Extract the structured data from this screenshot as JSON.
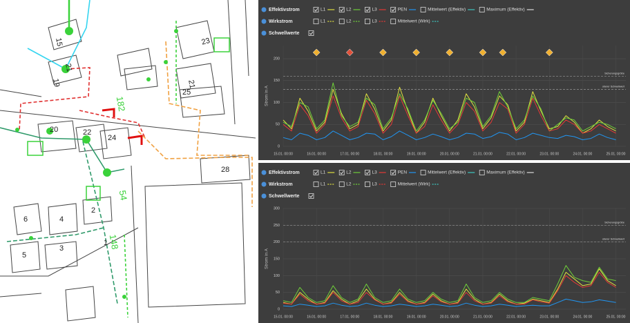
{
  "map": {
    "labels": [
      "15",
      "21",
      "19",
      "23",
      "21",
      "25",
      "182",
      "20",
      "22",
      "24",
      "28",
      "2",
      "54",
      "6",
      "4",
      "3",
      "5",
      "1",
      "148"
    ]
  },
  "chart_data": [
    {
      "type": "line",
      "legend_groups": [
        {
          "title": "Effektivstrom",
          "extra_items": [
            {
              "name": "Mittelwert (Effektiv)",
              "color": "#3ec7c0",
              "checked": false
            },
            {
              "name": "Maximum (Effektiv)",
              "color": "#dddddd",
              "checked": false
            }
          ]
        },
        {
          "title": "Wirkstrom",
          "items": [
            {
              "name": "L1",
              "color": "#e0e040",
              "checked": false
            },
            {
              "name": "L2",
              "color": "#6fcf3a",
              "checked": false
            },
            {
              "name": "L3",
              "color": "#e53935",
              "checked": false
            },
            {
              "name": "Mittelwert (Wirk)",
              "color": "#3ec7c0",
              "checked": false
            }
          ]
        },
        {
          "title": "Schwellwerte",
          "checked": true
        }
      ],
      "y_label": "Strom in A",
      "x": [
        15,
        15.25,
        15.5,
        15.75,
        16,
        16.25,
        16.5,
        16.75,
        17,
        17.25,
        17.5,
        17.75,
        18,
        18.25,
        18.5,
        18.75,
        19,
        19.25,
        19.5,
        19.75,
        20,
        20.25,
        20.5,
        20.75,
        21,
        21.25,
        21.5,
        21.75,
        22,
        22.25,
        22.5,
        22.75,
        23,
        23.25,
        23.5,
        23.75,
        24,
        24.25,
        24.5,
        24.75,
        25
      ],
      "xlim": [
        15,
        25.3
      ],
      "xticks": [
        {
          "value": 15,
          "label": "15.01. 00:00"
        },
        {
          "value": 16,
          "label": "16.01. 00:00"
        },
        {
          "value": 17,
          "label": "17.01. 00:00"
        },
        {
          "value": 18,
          "label": "18.01. 00:00"
        },
        {
          "value": 19,
          "label": "19.01. 00:00"
        },
        {
          "value": 20,
          "label": "20.01. 00:00"
        },
        {
          "value": 21,
          "label": "21.01. 00:00"
        },
        {
          "value": 22,
          "label": "22.01. 00:00"
        },
        {
          "value": 23,
          "label": "23.01. 00:00"
        },
        {
          "value": 24,
          "label": "24.01. 00:00"
        },
        {
          "value": 25,
          "label": "25.01. 00:00"
        }
      ],
      "ylim": [
        0,
        230
      ],
      "yticks": [
        0,
        50,
        100,
        150,
        200
      ],
      "thresholds": [
        {
          "label": "Sicherungsgröße",
          "value": 160
        },
        {
          "label": "oberer Schwellwert",
          "value": 130
        }
      ],
      "markers": [
        {
          "x": 16,
          "color": "#f0b030"
        },
        {
          "x": 17,
          "color": "#e0503a"
        },
        {
          "x": 18,
          "color": "#f0b030"
        },
        {
          "x": 19,
          "color": "#f0b030"
        },
        {
          "x": 20,
          "color": "#f0b030"
        },
        {
          "x": 21,
          "color": "#f0b030"
        },
        {
          "x": 21.6,
          "color": "#f0b030"
        },
        {
          "x": 23,
          "color": "#f0b030"
        }
      ],
      "series": [
        {
          "name": "L1",
          "color": "#e0e040",
          "checked": true,
          "values": [
            60,
            40,
            110,
            80,
            35,
            55,
            130,
            75,
            40,
            50,
            120,
            85,
            35,
            60,
            135,
            80,
            30,
            55,
            110,
            70,
            35,
            60,
            120,
            90,
            40,
            65,
            115,
            95,
            35,
            55,
            125,
            80,
            40,
            45,
            70,
            55,
            30,
            40,
            60,
            45,
            35
          ]
        },
        {
          "name": "L2",
          "color": "#6fcf3a",
          "checked": true,
          "values": [
            55,
            45,
            100,
            90,
            40,
            60,
            145,
            70,
            45,
            55,
            110,
            95,
            40,
            65,
            120,
            85,
            35,
            60,
            105,
            75,
            40,
            55,
            110,
            100,
            45,
            70,
            125,
            90,
            40,
            60,
            115,
            85,
            35,
            50,
            65,
            60,
            35,
            45,
            55,
            50,
            40
          ]
        },
        {
          "name": "L3",
          "color": "#e53935",
          "checked": true,
          "values": [
            50,
            35,
            95,
            70,
            30,
            50,
            115,
            65,
            35,
            45,
            105,
            75,
            30,
            50,
            115,
            70,
            30,
            45,
            95,
            60,
            30,
            50,
            100,
            80,
            35,
            55,
            100,
            85,
            30,
            50,
            110,
            70,
            35,
            40,
            60,
            50,
            30,
            35,
            50,
            40,
            30
          ]
        },
        {
          "name": "PEN",
          "color": "#2196f3",
          "checked": true,
          "values": [
            20,
            15,
            30,
            25,
            15,
            20,
            35,
            25,
            15,
            20,
            30,
            28,
            15,
            22,
            35,
            25,
            15,
            20,
            28,
            22,
            15,
            20,
            30,
            28,
            18,
            22,
            32,
            28,
            15,
            20,
            30,
            25,
            20,
            18,
            25,
            22,
            15,
            18,
            28,
            20,
            15
          ]
        }
      ]
    },
    {
      "type": "line",
      "legend_groups": [
        {
          "title": "Effektivstrom",
          "extra_items": [
            {
              "name": "Mittelwert (Effektiv)",
              "color": "#3ec7c0",
              "checked": false
            },
            {
              "name": "Maximum (Effektiv)",
              "color": "#dddddd",
              "checked": false
            }
          ]
        },
        {
          "title": "Wirkstrom",
          "items": [
            {
              "name": "L1",
              "color": "#e0e040",
              "checked": false
            },
            {
              "name": "L2",
              "color": "#6fcf3a",
              "checked": false
            },
            {
              "name": "L3",
              "color": "#e53935",
              "checked": false
            },
            {
              "name": "Mittelwert (Wirk)",
              "color": "#3ec7c0",
              "checked": false
            }
          ]
        },
        {
          "title": "Schwellwerte",
          "checked": true
        }
      ],
      "y_label": "Strom in A",
      "x": [
        15,
        15.25,
        15.5,
        15.75,
        16,
        16.25,
        16.5,
        16.75,
        17,
        17.25,
        17.5,
        17.75,
        18,
        18.25,
        18.5,
        18.75,
        19,
        19.25,
        19.5,
        19.75,
        20,
        20.25,
        20.5,
        20.75,
        21,
        21.25,
        21.5,
        21.75,
        22,
        22.25,
        22.5,
        22.75,
        23,
        23.25,
        23.5,
        23.75,
        24,
        24.25,
        24.5,
        24.75,
        25
      ],
      "xlim": [
        15,
        25.3
      ],
      "xticks": [
        {
          "value": 15,
          "label": "15.01. 00:00"
        },
        {
          "value": 16,
          "label": "16.01. 00:00"
        },
        {
          "value": 17,
          "label": "17.01. 00:00"
        },
        {
          "value": 18,
          "label": "18.01. 00:00"
        },
        {
          "value": 19,
          "label": "19.01. 00:00"
        },
        {
          "value": 20,
          "label": "20.01. 00:00"
        },
        {
          "value": 21,
          "label": "21.01. 00:00"
        },
        {
          "value": 22,
          "label": "22.01. 00:00"
        },
        {
          "value": 23,
          "label": "23.01. 00:00"
        },
        {
          "value": 24,
          "label": "24.01. 00:00"
        },
        {
          "value": 25,
          "label": "25.01. 00:00"
        }
      ],
      "ylim": [
        0,
        300
      ],
      "yticks": [
        0,
        50,
        100,
        150,
        200,
        250,
        300
      ],
      "thresholds": [
        {
          "label": "Sicherungsgröße",
          "value": 250
        },
        {
          "label": "oberer Schwellwert",
          "value": 200
        }
      ],
      "markers": [],
      "series": [
        {
          "name": "L1",
          "color": "#e0e040",
          "checked": true,
          "values": [
            20,
            15,
            50,
            30,
            15,
            20,
            55,
            30,
            15,
            25,
            60,
            30,
            15,
            20,
            50,
            25,
            15,
            20,
            45,
            25,
            15,
            20,
            60,
            30,
            15,
            20,
            45,
            25,
            15,
            18,
            30,
            25,
            20,
            60,
            110,
            90,
            70,
            75,
            120,
            85,
            70
          ]
        },
        {
          "name": "L2",
          "color": "#6fcf3a",
          "checked": true,
          "values": [
            25,
            20,
            65,
            35,
            20,
            25,
            70,
            35,
            20,
            30,
            75,
            35,
            20,
            25,
            60,
            30,
            20,
            25,
            50,
            30,
            20,
            25,
            75,
            35,
            20,
            25,
            50,
            30,
            20,
            20,
            35,
            30,
            25,
            75,
            130,
            95,
            85,
            80,
            125,
            90,
            85
          ]
        },
        {
          "name": "L3",
          "color": "#e53935",
          "checked": true,
          "values": [
            18,
            15,
            45,
            25,
            15,
            18,
            50,
            25,
            15,
            20,
            50,
            28,
            15,
            18,
            45,
            22,
            15,
            18,
            40,
            22,
            15,
            18,
            50,
            25,
            15,
            18,
            40,
            22,
            15,
            15,
            28,
            22,
            18,
            55,
            100,
            80,
            65,
            70,
            110,
            80,
            65
          ]
        },
        {
          "name": "PEN",
          "color": "#2196f3",
          "checked": true,
          "values": [
            10,
            8,
            15,
            12,
            8,
            10,
            18,
            12,
            8,
            10,
            18,
            12,
            8,
            10,
            15,
            12,
            8,
            10,
            15,
            12,
            8,
            10,
            18,
            12,
            8,
            10,
            15,
            12,
            8,
            10,
            12,
            10,
            10,
            20,
            30,
            25,
            20,
            22,
            28,
            24,
            20
          ]
        }
      ]
    }
  ]
}
